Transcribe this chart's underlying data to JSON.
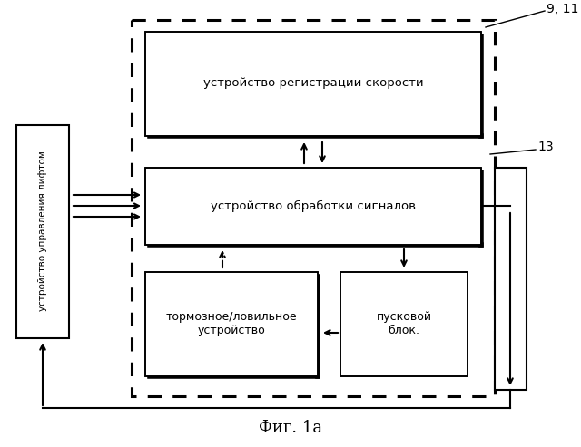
{
  "title": "Фиг. 1а",
  "background_color": "#ffffff",
  "label_lift_control": "устройство управления лифтом",
  "label_speed_reg": "устройство регистрации скорости",
  "label_signal_proc": "устройство обработки сигналов",
  "label_brake": "тормозное/ловильное\nустройство",
  "label_starter": "пусковой\nблок.",
  "label_9_11": "9, 11",
  "label_13": "13",
  "fig_width": 6.4,
  "fig_height": 4.93
}
